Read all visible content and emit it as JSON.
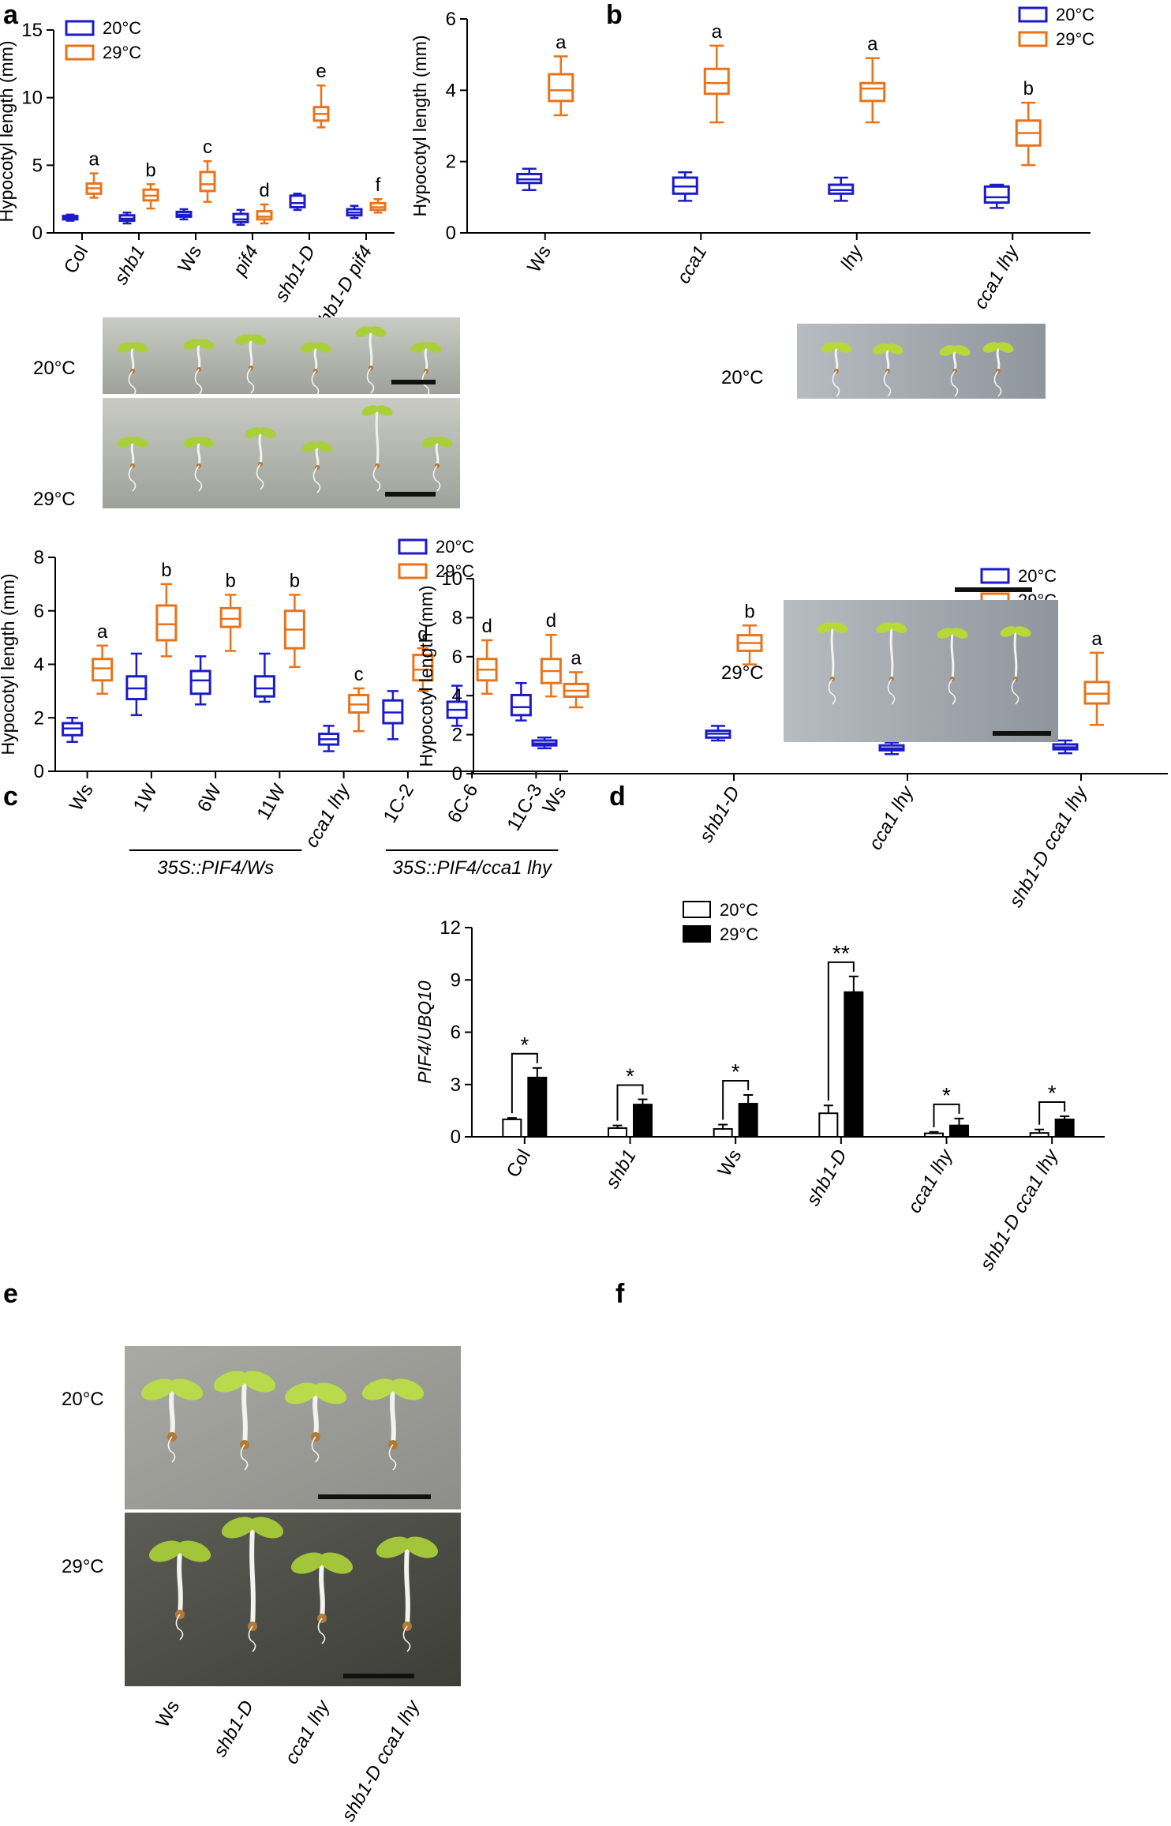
{
  "colors": {
    "c20": "#1b1bc9",
    "c29": "#e8731a",
    "bar20": "#ffffff",
    "bar29": "#000000"
  },
  "photos": {
    "a": {
      "top": "20°C",
      "bottom": "29°C"
    },
    "b": {
      "top": "20°C",
      "bottom": "29°C"
    },
    "e": {
      "top": "20°C",
      "bottom": "29°C",
      "categories": [
        "Ws",
        "shb1-D",
        "cca1 lhy",
        "shb1-D cca1 lhy"
      ]
    }
  },
  "chart_data": [
    {
      "panel": "a",
      "type": "box",
      "ylabel": "Hypocotyl length (mm)",
      "ylim": [
        0,
        15
      ],
      "yticks": [
        0,
        5,
        10,
        15
      ],
      "categories": [
        "Col",
        "shb1",
        "Ws",
        "pif4",
        "shb1-D",
        "shb1-D pif4"
      ],
      "italic": [
        false,
        true,
        false,
        true,
        true,
        true
      ],
      "legend": [
        "20°C",
        "29°C"
      ],
      "series": [
        {
          "name": "20°C",
          "boxes": [
            {
              "min": 0.9,
              "q1": 1.0,
              "med": 1.1,
              "q3": 1.25,
              "max": 1.35
            },
            {
              "min": 0.7,
              "q1": 0.9,
              "med": 1.05,
              "q3": 1.3,
              "max": 1.5
            },
            {
              "min": 1.0,
              "q1": 1.2,
              "med": 1.35,
              "q3": 1.55,
              "max": 1.75
            },
            {
              "min": 0.6,
              "q1": 0.8,
              "med": 1.0,
              "q3": 1.4,
              "max": 1.7
            },
            {
              "min": 1.7,
              "q1": 1.9,
              "med": 2.2,
              "q3": 2.75,
              "max": 2.9
            },
            {
              "min": 1.1,
              "q1": 1.3,
              "med": 1.5,
              "q3": 1.75,
              "max": 2.0
            }
          ]
        },
        {
          "name": "29°C",
          "boxes": [
            {
              "min": 2.6,
              "q1": 2.9,
              "med": 3.3,
              "q3": 3.65,
              "max": 4.4
            },
            {
              "min": 1.8,
              "q1": 2.4,
              "med": 2.75,
              "q3": 3.2,
              "max": 3.6
            },
            {
              "min": 2.3,
              "q1": 3.1,
              "med": 3.6,
              "q3": 4.5,
              "max": 5.3
            },
            {
              "min": 0.7,
              "q1": 1.0,
              "med": 1.2,
              "q3": 1.6,
              "max": 2.1
            },
            {
              "min": 7.8,
              "q1": 8.3,
              "med": 8.8,
              "q3": 9.3,
              "max": 10.9
            },
            {
              "min": 1.5,
              "q1": 1.7,
              "med": 1.9,
              "q3": 2.2,
              "max": 2.5
            }
          ]
        }
      ],
      "letters": [
        "a",
        "b",
        "c",
        "d",
        "e",
        "f"
      ]
    },
    {
      "panel": "b",
      "type": "box",
      "ylabel": "Hypocotyl length (mm)",
      "ylim": [
        0,
        6
      ],
      "yticks": [
        0,
        2,
        4,
        6
      ],
      "categories": [
        "Ws",
        "cca1",
        "lhy",
        "cca1 lhy"
      ],
      "italic": [
        false,
        true,
        true,
        true
      ],
      "legend": [
        "20°C",
        "29°C"
      ],
      "series": [
        {
          "name": "20°C",
          "boxes": [
            {
              "min": 1.2,
              "q1": 1.4,
              "med": 1.5,
              "q3": 1.65,
              "max": 1.8
            },
            {
              "min": 0.9,
              "q1": 1.1,
              "med": 1.3,
              "q3": 1.55,
              "max": 1.7
            },
            {
              "min": 0.9,
              "q1": 1.1,
              "med": 1.2,
              "q3": 1.35,
              "max": 1.55
            },
            {
              "min": 0.7,
              "q1": 0.85,
              "med": 1.0,
              "q3": 1.3,
              "max": 1.35
            }
          ]
        },
        {
          "name": "29°C",
          "boxes": [
            {
              "min": 3.3,
              "q1": 3.7,
              "med": 4.0,
              "q3": 4.45,
              "max": 4.95
            },
            {
              "min": 3.1,
              "q1": 3.9,
              "med": 4.2,
              "q3": 4.6,
              "max": 5.25
            },
            {
              "min": 3.1,
              "q1": 3.7,
              "med": 4.05,
              "q3": 4.2,
              "max": 4.9
            },
            {
              "min": 1.9,
              "q1": 2.45,
              "med": 2.8,
              "q3": 3.15,
              "max": 3.65
            }
          ]
        }
      ],
      "letters": [
        "a",
        "a",
        "a",
        "b"
      ]
    },
    {
      "panel": "c",
      "type": "box",
      "ylabel": "Hypocotyl length (mm)",
      "ylim": [
        0,
        8
      ],
      "yticks": [
        0,
        2,
        4,
        6,
        8
      ],
      "categories": [
        "Ws",
        "1W",
        "6W",
        "11W",
        "cca1 lhy",
        "1C-2",
        "6C-6",
        "11C-3"
      ],
      "italic": [
        false,
        false,
        false,
        false,
        true,
        false,
        false,
        false
      ],
      "groups": [
        {
          "label": "35S::PIF4/Ws",
          "from": 1,
          "to": 3
        },
        {
          "label": "35S::PIF4/cca1 lhy",
          "from": 5,
          "to": 7
        }
      ],
      "legend": [
        "20°C",
        "29°C"
      ],
      "series": [
        {
          "name": "20°C",
          "boxes": [
            {
              "min": 1.1,
              "q1": 1.35,
              "med": 1.6,
              "q3": 1.8,
              "max": 2.0
            },
            {
              "min": 2.1,
              "q1": 2.7,
              "med": 3.1,
              "q3": 3.55,
              "max": 4.4
            },
            {
              "min": 2.5,
              "q1": 2.9,
              "med": 3.4,
              "q3": 3.75,
              "max": 4.3
            },
            {
              "min": 2.6,
              "q1": 2.8,
              "med": 3.1,
              "q3": 3.55,
              "max": 4.4
            },
            {
              "min": 0.75,
              "q1": 1.0,
              "med": 1.2,
              "q3": 1.4,
              "max": 1.7
            },
            {
              "min": 1.2,
              "q1": 1.8,
              "med": 2.2,
              "q3": 2.65,
              "max": 3.0
            },
            {
              "min": 1.7,
              "q1": 2.0,
              "med": 2.3,
              "q3": 2.6,
              "max": 3.2
            },
            {
              "min": 1.9,
              "q1": 2.1,
              "med": 2.4,
              "q3": 2.85,
              "max": 3.3
            }
          ]
        },
        {
          "name": "29°C",
          "boxes": [
            {
              "min": 2.9,
              "q1": 3.4,
              "med": 3.85,
              "q3": 4.2,
              "max": 4.7
            },
            {
              "min": 4.3,
              "q1": 4.9,
              "med": 5.5,
              "q3": 6.2,
              "max": 7.0
            },
            {
              "min": 4.5,
              "q1": 5.4,
              "med": 5.7,
              "q3": 6.1,
              "max": 6.6
            },
            {
              "min": 3.9,
              "q1": 4.6,
              "med": 5.3,
              "q3": 6.0,
              "max": 6.6
            },
            {
              "min": 1.5,
              "q1": 2.2,
              "med": 2.5,
              "q3": 2.85,
              "max": 3.1
            },
            {
              "min": 3.0,
              "q1": 3.4,
              "med": 3.8,
              "q3": 4.35,
              "max": 4.6
            },
            {
              "min": 2.9,
              "q1": 3.4,
              "med": 3.8,
              "q3": 4.2,
              "max": 4.9
            },
            {
              "min": 2.8,
              "q1": 3.3,
              "med": 3.75,
              "q3": 4.2,
              "max": 5.1
            }
          ]
        }
      ],
      "letters": [
        "a",
        "b",
        "b",
        "b",
        "c",
        "d",
        "d",
        "d"
      ]
    },
    {
      "panel": "d",
      "type": "box",
      "ylabel": "Hypocotyl length (mm)",
      "ylim": [
        0,
        10
      ],
      "yticks": [
        0,
        2,
        4,
        6,
        8,
        10
      ],
      "categories": [
        "Ws",
        "shb1-D",
        "cca1 lhy",
        "shb1-D cca1 lhy"
      ],
      "italic": [
        false,
        true,
        true,
        true
      ],
      "legend": [
        "20°C",
        "29°C"
      ],
      "series": [
        {
          "name": "20°C",
          "boxes": [
            {
              "min": 1.3,
              "q1": 1.45,
              "med": 1.55,
              "q3": 1.7,
              "max": 1.85
            },
            {
              "min": 1.7,
              "q1": 1.85,
              "med": 2.05,
              "q3": 2.2,
              "max": 2.45
            },
            {
              "min": 1.0,
              "q1": 1.2,
              "med": 1.3,
              "q3": 1.45,
              "max": 1.6
            },
            {
              "min": 1.05,
              "q1": 1.25,
              "med": 1.35,
              "q3": 1.5,
              "max": 1.7
            }
          ]
        },
        {
          "name": "29°C",
          "boxes": [
            {
              "min": 3.4,
              "q1": 3.95,
              "med": 4.25,
              "q3": 4.6,
              "max": 5.2
            },
            {
              "min": 5.6,
              "q1": 6.3,
              "med": 6.7,
              "q3": 7.1,
              "max": 7.6
            },
            {
              "min": 1.7,
              "q1": 2.3,
              "med": 2.6,
              "q3": 2.95,
              "max": 3.5
            },
            {
              "min": 2.5,
              "q1": 3.6,
              "med": 4.1,
              "q3": 4.7,
              "max": 6.2
            }
          ]
        }
      ],
      "letters": [
        "a",
        "b",
        "c",
        "a"
      ]
    },
    {
      "panel": "f",
      "type": "bar",
      "ylabel": "PIF4/UBQ10",
      "ylim": [
        0,
        12
      ],
      "yticks": [
        0,
        3,
        6,
        9,
        12
      ],
      "categories": [
        "Col",
        "shb1",
        "Ws",
        "shb1-D",
        "cca1 lhy",
        "shb1-D cca1 lhy"
      ],
      "italic": [
        false,
        true,
        false,
        true,
        true,
        true
      ],
      "legend": [
        "20°C",
        "29°C"
      ],
      "series": [
        {
          "name": "20°C",
          "values": [
            1.0,
            0.5,
            0.45,
            1.35,
            0.2,
            0.22
          ],
          "err": [
            0.08,
            0.15,
            0.25,
            0.45,
            0.08,
            0.2
          ]
        },
        {
          "name": "29°C",
          "values": [
            3.4,
            1.85,
            1.9,
            8.3,
            0.65,
            1.0
          ],
          "err": [
            0.55,
            0.3,
            0.5,
            0.9,
            0.4,
            0.18
          ]
        }
      ],
      "significance": [
        "*",
        "*",
        "*",
        "**",
        "*",
        "*"
      ]
    }
  ]
}
